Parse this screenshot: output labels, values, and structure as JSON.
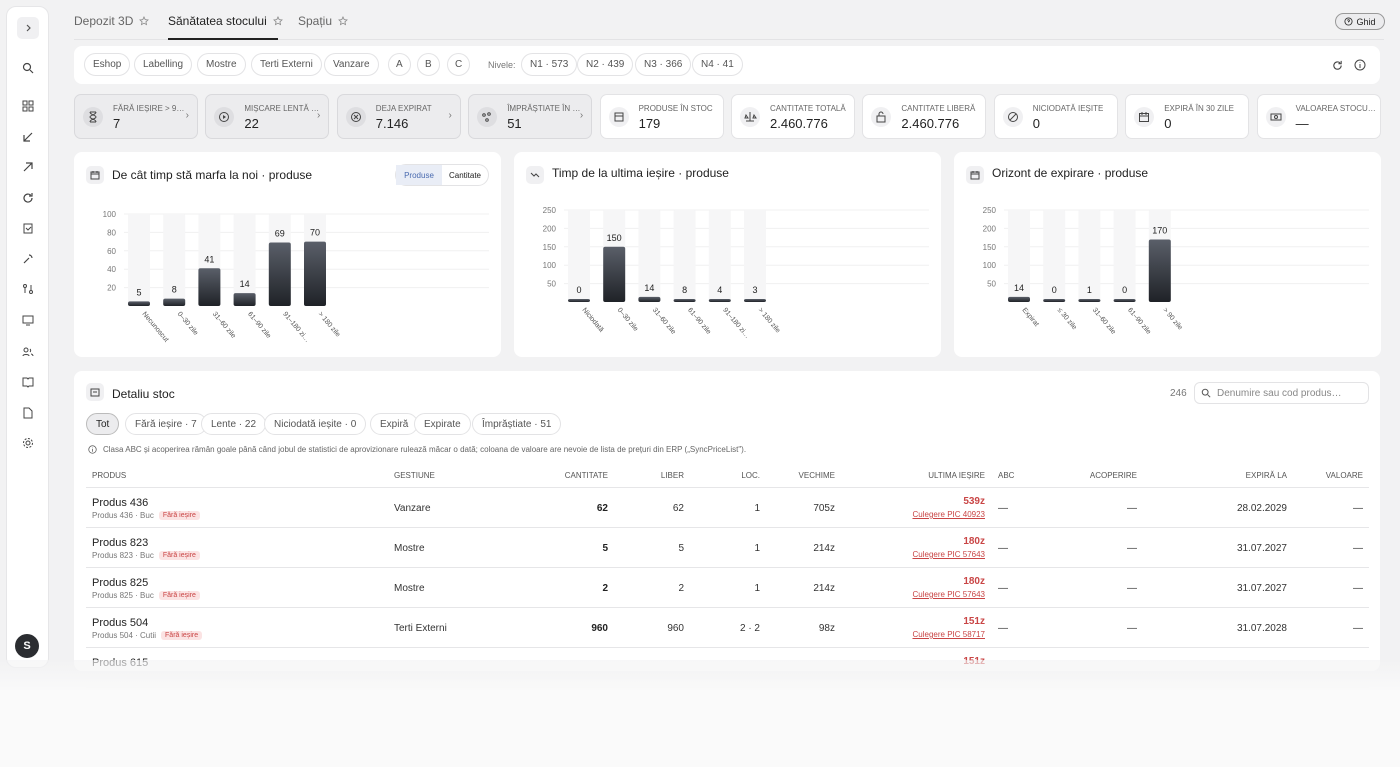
{
  "tabs": [
    {
      "label": "Depozit 3D"
    },
    {
      "label": "Sănătatea stocului"
    },
    {
      "label": "Spațiu"
    }
  ],
  "ghid_label": "Ghid",
  "filters": {
    "chips": [
      "Eshop",
      "Labelling",
      "Mostre",
      "Terti Externi",
      "Vanzare"
    ],
    "abc": [
      "A",
      "B",
      "C"
    ],
    "nivele_label": "Nivele:",
    "levels": [
      "N1 · 573",
      "N2 · 439",
      "N3 · 366",
      "N4 · 41"
    ]
  },
  "kpis": [
    {
      "label": "Fără ieșire > 9…",
      "value": "7",
      "icon": "hourglass-icon"
    },
    {
      "label": "Mișcare lentă …",
      "value": "22",
      "icon": "play-circle-icon"
    },
    {
      "label": "Deja expirat",
      "value": "7.146",
      "icon": "x-circle-icon"
    },
    {
      "label": "Împrăștiate în …",
      "value": "51",
      "icon": "scatter-icon"
    },
    {
      "label": "Produse în stoc",
      "value": "179",
      "icon": "box-icon"
    },
    {
      "label": "Cantitate totală",
      "value": "2.460.776",
      "icon": "scale-icon"
    },
    {
      "label": "Cantitate liberă",
      "value": "2.460.776",
      "icon": "lock-open-icon"
    },
    {
      "label": "Niciodată ieșite",
      "value": "0",
      "icon": "ban-icon"
    },
    {
      "label": "Expiră în 30 zile",
      "value": "0",
      "icon": "calendar-icon"
    },
    {
      "label": "Valoarea stocu…",
      "value": "—",
      "icon": "money-icon"
    }
  ],
  "charts": {
    "c1": {
      "title": "De cât timp stă marfa la noi · produse",
      "seg": [
        "Produse",
        "Cantitate"
      ]
    },
    "c2": {
      "title": "Timp de la ultima ieșire · produse"
    },
    "c3": {
      "title": "Orizont de expirare · produse"
    }
  },
  "chart_data": [
    {
      "type": "bar",
      "title": "De cât timp stă marfa la noi · produse",
      "categories": [
        "Necunoscut",
        "0–30 zile",
        "31–60 zile",
        "61–90 zile",
        "91–180 zi…",
        "> 180 zile"
      ],
      "values": [
        5,
        8,
        41,
        14,
        69,
        70
      ],
      "ylim": [
        0,
        100
      ],
      "yticks": [
        20,
        40,
        60,
        80,
        100
      ]
    },
    {
      "type": "bar",
      "title": "Timp de la ultima ieșire · produse",
      "categories": [
        "Niciodată",
        "0–30 zile",
        "31–60 zile",
        "61–90 zile",
        "91–180 zi…",
        "> 180 zile"
      ],
      "values": [
        0,
        150,
        14,
        8,
        4,
        3
      ],
      "ylim": [
        0,
        250
      ],
      "yticks": [
        50,
        100,
        150,
        200,
        250
      ]
    },
    {
      "type": "bar",
      "title": "Orizont de expirare · produse",
      "categories": [
        "Expirat",
        "≤ 30 zile",
        "31–60 zile",
        "61–90 zile",
        "> 90 zile"
      ],
      "values": [
        14,
        0,
        1,
        0,
        170
      ],
      "ylim": [
        0,
        250
      ],
      "yticks": [
        50,
        100,
        150,
        200,
        250
      ]
    }
  ],
  "detail": {
    "title": "Detaliu stoc",
    "count": "246",
    "search_placeholder": "Denumire sau cod produs…",
    "tabs": [
      "Tot",
      "Fără ieșire · 7",
      "Lente · 22",
      "Niciodată ieșite · 0",
      "Expiră",
      "Expirate",
      "Împrăștiate · 51"
    ],
    "note": "Clasa ABC și acoperirea rămân goale până când jobul de statistici de aprovizionare rulează măcar o dată; coloana de valoare are nevoie de lista de prețuri din ERP („SyncPriceList\").",
    "columns": [
      "Produs",
      "Gestiune",
      "Cantitate",
      "Liber",
      "Loc.",
      "Vechime",
      "Ultima ieșire",
      "ABC",
      "Acoperire",
      "Expiră la",
      "Valoare"
    ],
    "rows": [
      {
        "name": "Produs 436",
        "sub": "Produs 436 · Buc",
        "badge": "Fără ieșire",
        "gest": "Vanzare",
        "cant": "62",
        "liber": "62",
        "loc": "1",
        "vech": "705z",
        "ue": "539z",
        "ue_sub": "Culegere PIC 40923",
        "abc": "—",
        "acop": "—",
        "exp": "28.02.2029",
        "val": "—"
      },
      {
        "name": "Produs 823",
        "sub": "Produs 823 · Buc",
        "badge": "Fără ieșire",
        "gest": "Mostre",
        "cant": "5",
        "liber": "5",
        "loc": "1",
        "vech": "214z",
        "ue": "180z",
        "ue_sub": "Culegere PIC 57643",
        "abc": "—",
        "acop": "—",
        "exp": "31.07.2027",
        "val": "—"
      },
      {
        "name": "Produs 825",
        "sub": "Produs 825 · Buc",
        "badge": "Fără ieșire",
        "gest": "Mostre",
        "cant": "2",
        "liber": "2",
        "loc": "1",
        "vech": "214z",
        "ue": "180z",
        "ue_sub": "Culegere PIC 57643",
        "abc": "—",
        "acop": "—",
        "exp": "31.07.2027",
        "val": "—"
      },
      {
        "name": "Produs 504",
        "sub": "Produs 504 · Cutii",
        "badge": "Fără ieșire",
        "gest": "Terti Externi",
        "cant": "960",
        "liber": "960",
        "loc": "2 · 2",
        "vech": "98z",
        "ue": "151z",
        "ue_sub": "Culegere PIC 58717",
        "abc": "—",
        "acop": "—",
        "exp": "31.07.2028",
        "val": "—"
      },
      {
        "name": "Produs 615",
        "sub": "",
        "badge": "",
        "gest": "",
        "cant": "",
        "liber": "",
        "loc": "",
        "vech": "",
        "ue": "151z",
        "ue_sub": "",
        "abc": "",
        "acop": "",
        "exp": "",
        "val": ""
      }
    ]
  },
  "avatar_initial": "S"
}
